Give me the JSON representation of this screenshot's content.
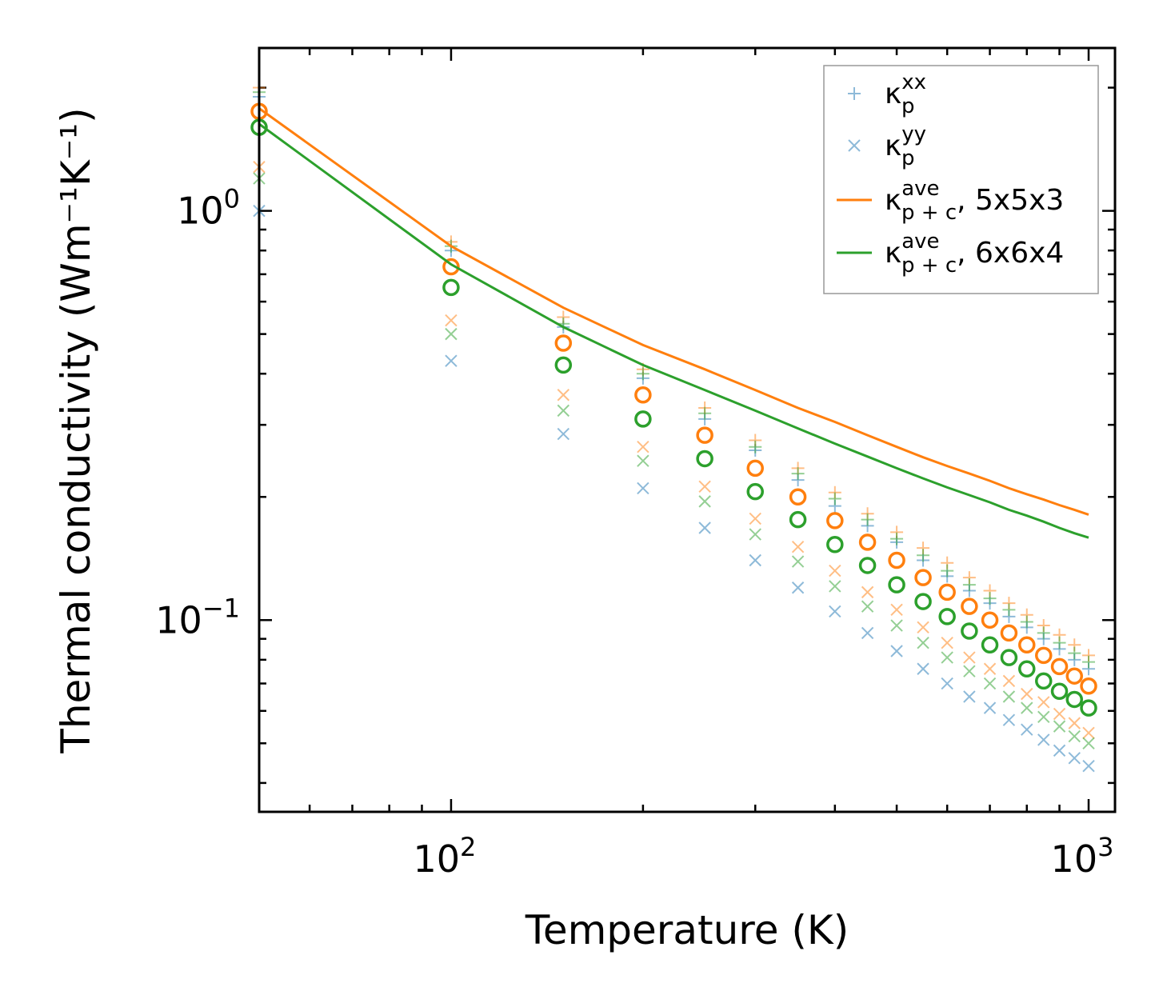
{
  "chart_data": {
    "type": "scatter",
    "xscale": "log",
    "yscale": "log",
    "xlim": [
      50,
      1100
    ],
    "ylim": [
      0.034,
      2.5
    ],
    "xlabel": "Temperature (K)",
    "ylabel": "Thermal conductivity (Wm⁻¹K⁻¹)",
    "x_ticks": [
      {
        "value": 100,
        "base": "10",
        "exp": "2"
      },
      {
        "value": 1000,
        "base": "10",
        "exp": "3"
      }
    ],
    "y_ticks": [
      {
        "value": 0.1,
        "base": "10",
        "exp": "−1"
      },
      {
        "value": 1,
        "base": "10",
        "exp": "0"
      }
    ],
    "legend": {
      "position": "top-right",
      "entries": [
        {
          "symbol": "κ",
          "sub": "p",
          "sup": "xx",
          "suffix": "",
          "color": "#1f77b4",
          "marker": "plus"
        },
        {
          "symbol": "κ",
          "sub": "p",
          "sup": "yy",
          "suffix": "",
          "color": "#1f77b4",
          "marker": "x"
        },
        {
          "symbol": "κ",
          "sub": "p + c",
          "sup": "ave",
          "suffix": ", 5x5x3",
          "color": "#ff7f0e",
          "marker": "line"
        },
        {
          "symbol": "κ",
          "sub": "p + c",
          "sup": "ave",
          "suffix": ", 6x6x4",
          "color": "#2ca02c",
          "marker": "line"
        }
      ]
    },
    "x": [
      50,
      100,
      150,
      200,
      250,
      300,
      350,
      400,
      450,
      500,
      550,
      600,
      650,
      700,
      750,
      800,
      850,
      900,
      950,
      1000
    ],
    "series": [
      {
        "name": "κp xx (blue)",
        "color": "#1f77b4",
        "marker": "plus",
        "alpha": 0.5,
        "values": [
          1.9,
          0.8,
          0.52,
          0.39,
          0.31,
          0.26,
          0.22,
          0.19,
          0.17,
          0.155,
          0.14,
          0.128,
          0.118,
          0.11,
          0.102,
          0.096,
          0.09,
          0.085,
          0.08,
          0.076
        ]
      },
      {
        "name": "κp yy (blue)",
        "color": "#1f77b4",
        "marker": "x",
        "alpha": 0.5,
        "values": [
          1.0,
          0.43,
          0.285,
          0.21,
          0.168,
          0.14,
          0.12,
          0.105,
          0.093,
          0.084,
          0.076,
          0.07,
          0.065,
          0.061,
          0.057,
          0.054,
          0.051,
          0.048,
          0.046,
          0.044
        ]
      },
      {
        "name": "κp xx (orange)",
        "color": "#ff7f0e",
        "marker": "plus",
        "alpha": 0.5,
        "values": [
          2.0,
          0.84,
          0.55,
          0.41,
          0.33,
          0.275,
          0.235,
          0.205,
          0.182,
          0.164,
          0.15,
          0.138,
          0.127,
          0.118,
          0.11,
          0.103,
          0.097,
          0.092,
          0.087,
          0.082
        ]
      },
      {
        "name": "κp yy (orange)",
        "color": "#ff7f0e",
        "marker": "x",
        "alpha": 0.5,
        "values": [
          1.28,
          0.54,
          0.355,
          0.265,
          0.212,
          0.177,
          0.151,
          0.132,
          0.117,
          0.106,
          0.096,
          0.088,
          0.081,
          0.076,
          0.071,
          0.066,
          0.063,
          0.059,
          0.056,
          0.053
        ]
      },
      {
        "name": "κp xx (green)",
        "color": "#2ca02c",
        "marker": "plus",
        "alpha": 0.5,
        "values": [
          1.95,
          0.82,
          0.53,
          0.4,
          0.32,
          0.265,
          0.228,
          0.198,
          0.176,
          0.158,
          0.144,
          0.132,
          0.122,
          0.113,
          0.106,
          0.099,
          0.093,
          0.088,
          0.083,
          0.079
        ]
      },
      {
        "name": "κp yy (green)",
        "color": "#2ca02c",
        "marker": "x",
        "alpha": 0.5,
        "values": [
          1.2,
          0.5,
          0.325,
          0.245,
          0.195,
          0.162,
          0.139,
          0.121,
          0.108,
          0.097,
          0.088,
          0.081,
          0.075,
          0.07,
          0.065,
          0.061,
          0.058,
          0.055,
          0.052,
          0.05
        ]
      },
      {
        "name": "κp ave (orange circles)",
        "color": "#ff7f0e",
        "marker": "circle",
        "alpha": 1,
        "values": [
          1.75,
          0.73,
          0.475,
          0.355,
          0.283,
          0.235,
          0.2,
          0.175,
          0.155,
          0.14,
          0.127,
          0.117,
          0.108,
          0.1,
          0.093,
          0.087,
          0.082,
          0.077,
          0.073,
          0.069
        ]
      },
      {
        "name": "κp ave (green circles)",
        "color": "#2ca02c",
        "marker": "circle",
        "alpha": 1,
        "values": [
          1.6,
          0.65,
          0.42,
          0.31,
          0.248,
          0.206,
          0.176,
          0.153,
          0.136,
          0.122,
          0.111,
          0.102,
          0.094,
          0.087,
          0.081,
          0.076,
          0.071,
          0.067,
          0.064,
          0.061
        ]
      },
      {
        "name": "κp+c ave, 5x5x3",
        "color": "#ff7f0e",
        "marker": "line",
        "alpha": 1,
        "values": [
          1.78,
          0.82,
          0.58,
          0.47,
          0.41,
          0.365,
          0.33,
          0.305,
          0.283,
          0.265,
          0.25,
          0.238,
          0.228,
          0.219,
          0.21,
          0.203,
          0.197,
          0.191,
          0.186,
          0.181
        ]
      },
      {
        "name": "κp+c ave, 6x6x4",
        "color": "#2ca02c",
        "marker": "line",
        "alpha": 1,
        "values": [
          1.63,
          0.74,
          0.52,
          0.42,
          0.365,
          0.325,
          0.294,
          0.27,
          0.251,
          0.235,
          0.222,
          0.211,
          0.202,
          0.194,
          0.186,
          0.18,
          0.174,
          0.168,
          0.163,
          0.159
        ]
      }
    ]
  }
}
